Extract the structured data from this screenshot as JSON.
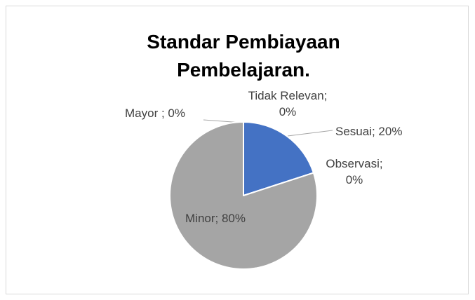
{
  "chart_data": {
    "type": "pie",
    "title": "Standar Pembiayaan Pembelajaran.",
    "categories": [
      "Sesuai",
      "Observasi",
      "Minor",
      "Mayor",
      "Tidak Relevan"
    ],
    "values": [
      20,
      0,
      80,
      0,
      0
    ],
    "value_labels": [
      "Sesuai; 20%",
      "Observasi; 0%",
      "Minor; 80%",
      "Mayor ; 0%",
      "Tidak Relevan; 0%"
    ],
    "colors": [
      "#4472c4",
      "#ed7d31",
      "#a5a5a5",
      "#ffc000",
      "#5b9bd5"
    ]
  }
}
